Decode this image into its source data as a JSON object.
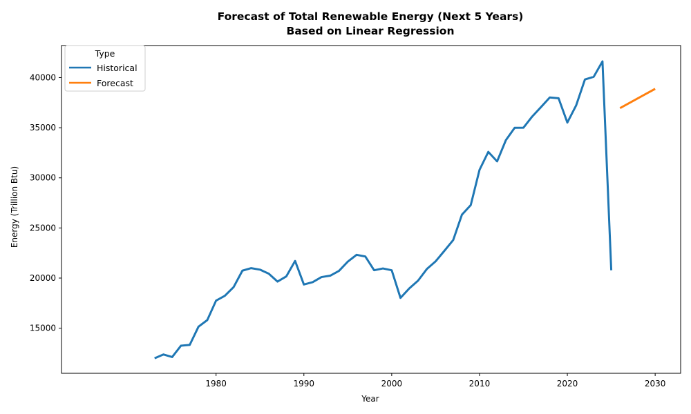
{
  "chart_data": {
    "type": "line",
    "title": "Forecast of Total Renewable Energy (Next 5 Years)",
    "subtitle": "Based on Linear Regression",
    "xlabel": "Year",
    "ylabel": "Energy (Trillion Btu)",
    "xlim": [
      1962.4,
      2032.9
    ],
    "ylim": [
      10500,
      43200
    ],
    "xticks": [
      1980,
      1990,
      2000,
      2010,
      2020,
      2030
    ],
    "yticks": [
      15000,
      20000,
      25000,
      30000,
      35000,
      40000
    ],
    "grid": false,
    "legend": {
      "title": "Type",
      "placement": "top-left"
    },
    "series": [
      {
        "name": "Historical",
        "color": "#1f77b4",
        "x": [
          1973,
          1974,
          1975,
          1976,
          1977,
          1978,
          1979,
          1980,
          1981,
          1982,
          1983,
          1984,
          1985,
          1986,
          1987,
          1988,
          1989,
          1990,
          1991,
          1992,
          1993,
          1994,
          1995,
          1996,
          1997,
          1998,
          1999,
          2000,
          2001,
          2002,
          2003,
          2004,
          2005,
          2006,
          2007,
          2008,
          2009,
          2010,
          2011,
          2012,
          2013,
          2014,
          2015,
          2016,
          2017,
          2018,
          2019,
          2020,
          2021,
          2022,
          2023,
          2024,
          2025
        ],
        "values": [
          12000,
          12380,
          12120,
          13250,
          13330,
          15150,
          15810,
          17750,
          18230,
          19100,
          20740,
          20990,
          20840,
          20440,
          19650,
          20170,
          21710,
          19360,
          19590,
          20100,
          20240,
          20720,
          21640,
          22320,
          22150,
          20780,
          20960,
          20780,
          18020,
          18970,
          19740,
          20900,
          21670,
          22720,
          23790,
          26330,
          27280,
          30800,
          32590,
          31640,
          33760,
          34990,
          35000,
          36120,
          37060,
          38020,
          37940,
          35520,
          37220,
          39810,
          40080,
          41620,
          20780
        ]
      },
      {
        "name": "Forecast",
        "color": "#ff7f0e",
        "x": [
          2026,
          2027,
          2028,
          2029,
          2030
        ],
        "values": [
          36960,
          37440,
          37920,
          38400,
          38880
        ]
      }
    ]
  }
}
